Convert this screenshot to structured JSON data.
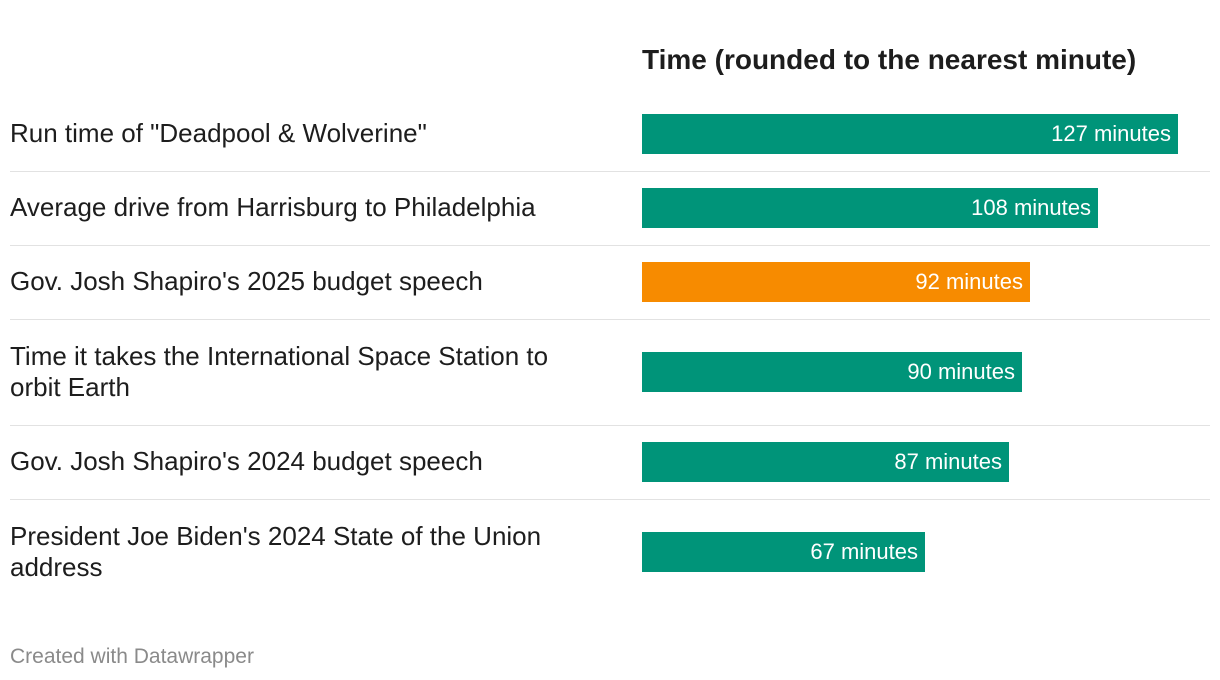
{
  "chart_data": {
    "type": "bar",
    "orientation": "horizontal",
    "title": "Time (rounded to the nearest minute)",
    "categories": [
      "Run time of \"Deadpool & Wolverine\"",
      "Average drive from Harrisburg to Philadelphia",
      "Gov. Josh Shapiro's 2025 budget speech",
      "Time it takes the International Space Station to orbit Earth",
      "Gov. Josh Shapiro's 2024 budget speech",
      "President Joe Biden's 2024 State of the Union address"
    ],
    "values": [
      127,
      108,
      92,
      90,
      87,
      67
    ],
    "value_labels": [
      "127 minutes",
      "108 minutes",
      "92 minutes",
      "90 minutes",
      "87 minutes",
      "67 minutes"
    ],
    "highlight_index": 2,
    "unit": "minutes",
    "xlim": [
      0,
      127
    ],
    "xlabel": "",
    "ylabel": "",
    "grid": false,
    "colors": {
      "default": "#009479",
      "highlight": "#f78b00"
    }
  },
  "footer": {
    "credit": "Created with Datawrapper"
  }
}
